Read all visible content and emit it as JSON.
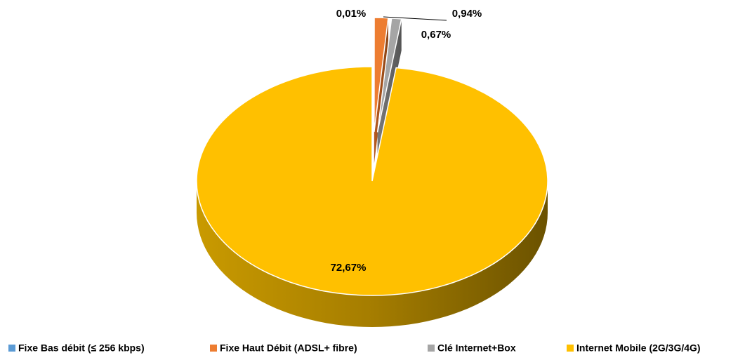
{
  "chart_data": {
    "type": "pie",
    "categories": [
      "Fixe Bas débit (≤ 256 kbps)",
      "Fixe Haut Débit (ADSL+ fibre)",
      "Clé Internet+Box",
      "Internet Mobile (2G/3G/4G)"
    ],
    "values": [
      0.01,
      0.94,
      0.67,
      72.67
    ],
    "value_labels": [
      "0,01%",
      "0,94%",
      "0,67%",
      "72,67%"
    ],
    "colors": [
      "#5b9bd5",
      "#ed7d31",
      "#a5a5a5",
      "#ffc000"
    ],
    "legend": "bottom"
  }
}
